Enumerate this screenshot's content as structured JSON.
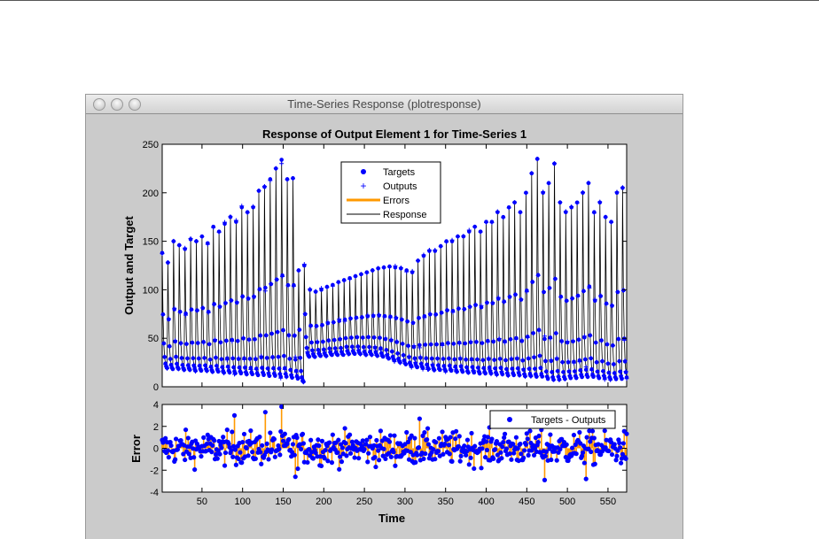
{
  "window": {
    "title": "Time-Series Response (plotresponse)"
  },
  "chart_data": [
    {
      "type": "line",
      "title": "Response of Output Element 1 for Time-Series 1",
      "xlabel": "",
      "ylabel": "Output and Target",
      "xlim": [
        1,
        573
      ],
      "ylim": [
        0,
        250
      ],
      "yticks": [
        "0",
        "50",
        "100",
        "150",
        "200",
        "250"
      ],
      "xticks": [
        50,
        100,
        150,
        200,
        250,
        300,
        350,
        400,
        450,
        500,
        550
      ],
      "cycle_length": 7,
      "cycle_peaks": [
        138,
        128,
        150,
        146,
        142,
        152,
        150,
        155,
        148,
        165,
        160,
        168,
        175,
        170,
        185,
        180,
        185,
        202,
        206,
        214,
        225,
        234,
        214,
        215,
        120,
        125,
        100,
        98,
        100,
        103,
        105,
        108,
        110,
        112,
        114,
        116,
        118,
        120,
        122,
        123,
        124,
        123,
        122,
        120,
        118,
        130,
        135,
        140,
        140,
        145,
        150,
        150,
        155,
        155,
        160,
        165,
        160,
        170,
        170,
        180,
        175,
        185,
        190,
        180,
        200,
        220,
        235,
        200,
        210,
        230,
        190,
        180,
        185,
        190,
        200,
        210,
        180,
        190,
        175,
        170,
        200,
        205,
        150
      ],
      "cycle_troughs": [
        18,
        17,
        17,
        16,
        16,
        15,
        15,
        15,
        14,
        14,
        13,
        13,
        12,
        12,
        11,
        11,
        10,
        10,
        9,
        9,
        8,
        8,
        7,
        6,
        4,
        30,
        30,
        31,
        31,
        32,
        32,
        32,
        33,
        33,
        33,
        32,
        32,
        31,
        30,
        28,
        26,
        24,
        22,
        20,
        19,
        18,
        17,
        16,
        16,
        15,
        15,
        14,
        14,
        13,
        13,
        12,
        12,
        12,
        11,
        11,
        10,
        10,
        10,
        9,
        9,
        8,
        8,
        6,
        5,
        5,
        6,
        7,
        7,
        8,
        8,
        8,
        7,
        7,
        6,
        6,
        6,
        5,
        5
      ],
      "legend": {
        "placement": "top-center",
        "entries": [
          "Targets",
          "Outputs",
          "Errors",
          "Response"
        ]
      },
      "colors": {
        "targets": "#0000ff",
        "outputs": "#0000ff",
        "errors": "#ff9900",
        "response": "#000000"
      }
    },
    {
      "type": "scatter",
      "title": "",
      "xlabel": "Time",
      "ylabel": "Error",
      "xlim": [
        1,
        573
      ],
      "ylim": [
        -4,
        4
      ],
      "yticks": [
        "-4",
        "-2",
        "0",
        "2",
        "4"
      ],
      "xticks": [
        "50",
        "100",
        "150",
        "200",
        "250",
        "300",
        "350",
        "400",
        "450",
        "500",
        "550"
      ],
      "error_std": 0.75,
      "error_extremes": [
        [
          90,
          3.0
        ],
        [
          128,
          3.3
        ],
        [
          148,
          3.8
        ],
        [
          165,
          -2.6
        ],
        [
          318,
          2.7
        ],
        [
          472,
          -2.9
        ],
        [
          523,
          -2.8
        ]
      ],
      "legend": {
        "placement": "top-right",
        "entries": [
          "Targets - Outputs"
        ]
      }
    }
  ]
}
